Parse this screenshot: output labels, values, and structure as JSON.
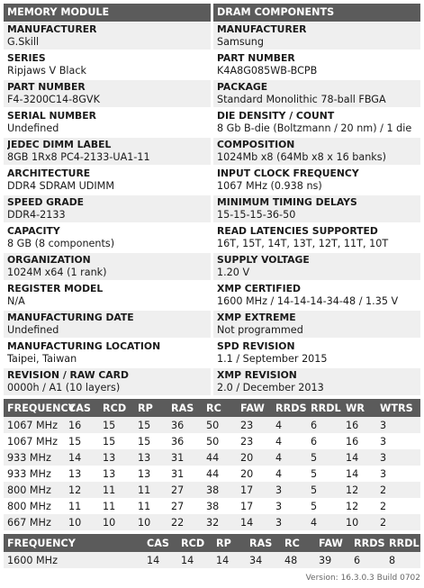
{
  "module": {
    "header": "MEMORY MODULE",
    "items": [
      {
        "label": "MANUFACTURER",
        "value": "G.Skill"
      },
      {
        "label": "SERIES",
        "value": "Ripjaws V Black"
      },
      {
        "label": "PART NUMBER",
        "value": "F4-3200C14-8GVK"
      },
      {
        "label": "SERIAL NUMBER",
        "value": "Undefined"
      },
      {
        "label": "JEDEC DIMM LABEL",
        "value": "8GB 1Rx8 PC4-2133-UA1-11"
      },
      {
        "label": "ARCHITECTURE",
        "value": "DDR4 SDRAM UDIMM"
      },
      {
        "label": "SPEED GRADE",
        "value": "DDR4-2133"
      },
      {
        "label": "CAPACITY",
        "value": "8 GB (8 components)"
      },
      {
        "label": "ORGANIZATION",
        "value": "1024M x64 (1 rank)"
      },
      {
        "label": "REGISTER MODEL",
        "value": "N/A"
      },
      {
        "label": "MANUFACTURING DATE",
        "value": "Undefined"
      },
      {
        "label": "MANUFACTURING LOCATION",
        "value": "Taipei, Taiwan"
      },
      {
        "label": "REVISION / RAW CARD",
        "value": "0000h / A1 (10 layers)"
      }
    ]
  },
  "components": {
    "header": "DRAM COMPONENTS",
    "items": [
      {
        "label": "MANUFACTURER",
        "value": "Samsung"
      },
      {
        "label": "PART NUMBER",
        "value": "K4A8G085WB-BCPB"
      },
      {
        "label": "PACKAGE",
        "value": "Standard Monolithic 78-ball FBGA"
      },
      {
        "label": "DIE DENSITY / COUNT",
        "value": "8 Gb B-die (Boltzmann / 20 nm) / 1 die"
      },
      {
        "label": "COMPOSITION",
        "value": "1024Mb x8 (64Mb x8 x 16 banks)"
      },
      {
        "label": "INPUT CLOCK FREQUENCY",
        "value": "1067 MHz (0.938 ns)"
      },
      {
        "label": "MINIMUM TIMING DELAYS",
        "value": "15-15-15-36-50"
      },
      {
        "label": "READ LATENCIES SUPPORTED",
        "value": "16T, 15T, 14T, 13T, 12T, 11T, 10T"
      },
      {
        "label": "SUPPLY VOLTAGE",
        "value": "1.20 V"
      },
      {
        "label": "XMP CERTIFIED",
        "value": "1600 MHz / 14-14-14-34-48 / 1.35 V"
      },
      {
        "label": "XMP EXTREME",
        "value": "Not programmed"
      },
      {
        "label": "SPD REVISION",
        "value": "1.1 / September 2015"
      },
      {
        "label": "XMP REVISION",
        "value": "2.0 / December 2013"
      }
    ]
  },
  "jedec_table": {
    "columns": [
      "FREQUENCY",
      "CAS",
      "RCD",
      "RP",
      "RAS",
      "RC",
      "FAW",
      "RRDS",
      "RRDL",
      "WR",
      "WTRS"
    ],
    "rows": [
      [
        "1067 MHz",
        "16",
        "15",
        "15",
        "36",
        "50",
        "23",
        "4",
        "6",
        "16",
        "3"
      ],
      [
        "1067 MHz",
        "15",
        "15",
        "15",
        "36",
        "50",
        "23",
        "4",
        "6",
        "16",
        "3"
      ],
      [
        "933 MHz",
        "14",
        "13",
        "13",
        "31",
        "44",
        "20",
        "4",
        "5",
        "14",
        "3"
      ],
      [
        "933 MHz",
        "13",
        "13",
        "13",
        "31",
        "44",
        "20",
        "4",
        "5",
        "14",
        "3"
      ],
      [
        "800 MHz",
        "12",
        "11",
        "11",
        "27",
        "38",
        "17",
        "3",
        "5",
        "12",
        "2"
      ],
      [
        "800 MHz",
        "11",
        "11",
        "11",
        "27",
        "38",
        "17",
        "3",
        "5",
        "12",
        "2"
      ],
      [
        "667 MHz",
        "10",
        "10",
        "10",
        "22",
        "32",
        "14",
        "3",
        "4",
        "10",
        "2"
      ]
    ]
  },
  "xmp_table": {
    "columns": [
      "FREQUENCY",
      "CAS",
      "RCD",
      "RP",
      "RAS",
      "RC",
      "FAW",
      "RRDS",
      "RRDL"
    ],
    "rows": [
      [
        "1600 MHz",
        "14",
        "14",
        "14",
        "34",
        "48",
        "39",
        "6",
        "8"
      ]
    ]
  },
  "version": "Version: 16.3.0.3 Build 0702"
}
